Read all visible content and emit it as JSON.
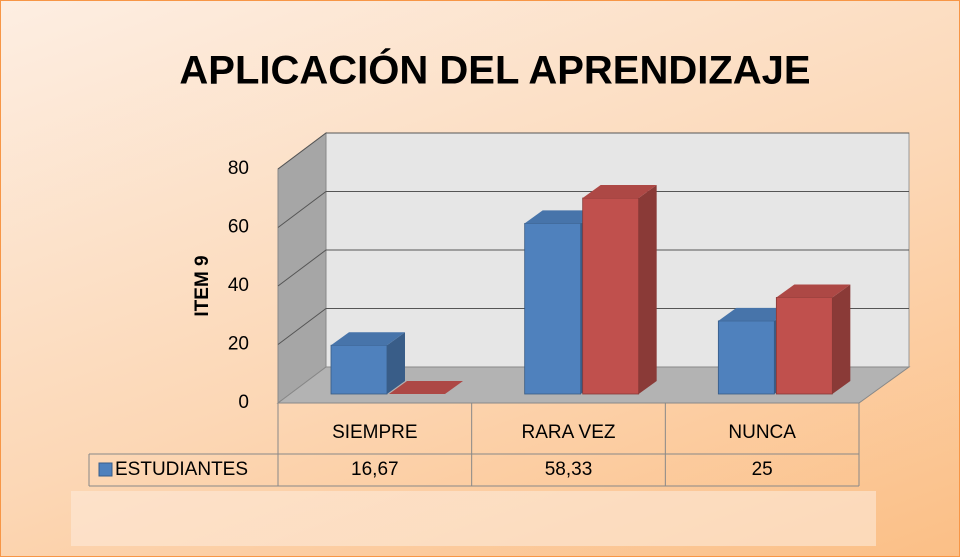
{
  "chart_data": {
    "type": "bar3d",
    "title": "APLICACIÓN DEL APRENDIZAJE",
    "y_label": "ITEM 9",
    "categories": [
      "SIEMPRE",
      "RARA VEZ",
      "NUNCA"
    ],
    "series": [
      {
        "name": "ESTUDIANTES",
        "color": "#4f81bd",
        "values": [
          16.67,
          58.33,
          25
        ],
        "value_labels": [
          "16,67",
          "58,33",
          "25"
        ]
      },
      {
        "color": "#c0504d",
        "values": [
          0,
          67,
          33
        ]
      }
    ],
    "ylim": [
      0,
      80
    ],
    "yticks": [
      0,
      20,
      40,
      60,
      80
    ],
    "grid": true
  }
}
